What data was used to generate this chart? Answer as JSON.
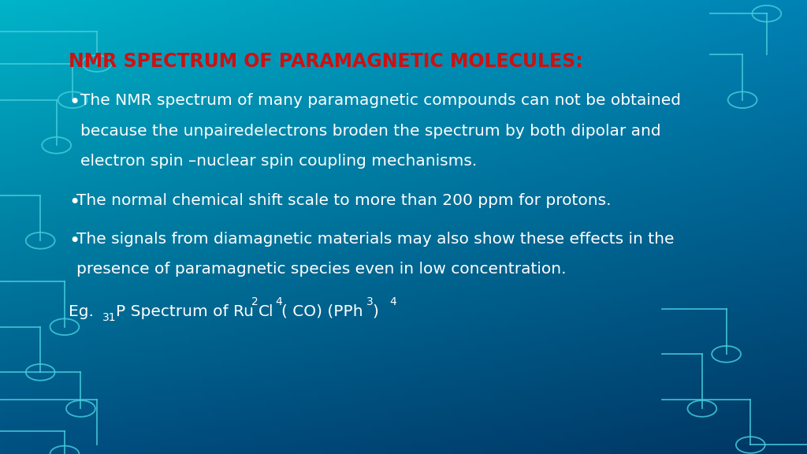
{
  "title": "NMR SPECTRUM OF PARAMAGNETIC MOLECULES:",
  "title_color": "#cc1111",
  "title_fontsize": 17,
  "text_color": "#ffffff",
  "bullet_fontsize": 14.5,
  "bullet1_line1": "     The NMR spectrum of many paramagnetic compounds can not be obtained",
  "bullet1_line2": "  because the unpairedelectrons broden the spectrum by both dipolar and",
  "bullet1_line3": "  electron spin –nuclear spin coupling mechanisms.",
  "bullet2": "  The normal chemical shift scale to more than 200 ppm for protons.",
  "bullet3_line1": "  The signals from diamagnetic materials may also show these effects in the",
  "bullet3_line2": "  presence of paramagnetic species even in low concentration.",
  "circuit_color": "#44ccdd",
  "bg_corners": {
    "lt": [
      0,
      180,
      200
    ],
    "rt": [
      0,
      130,
      180
    ],
    "lb": [
      0,
      80,
      130
    ],
    "rb": [
      0,
      55,
      100
    ]
  }
}
